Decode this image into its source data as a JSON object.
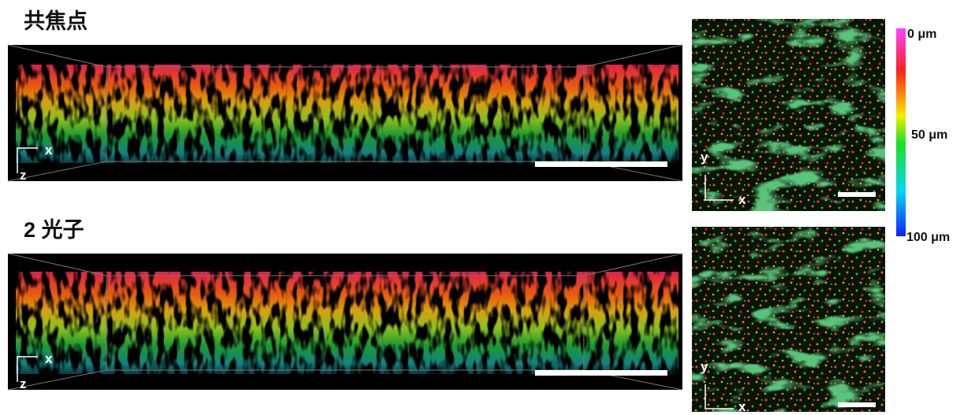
{
  "panels": [
    {
      "title": "共焦点",
      "side_view": {
        "x_label": "x",
        "z_label": "z"
      },
      "top_view": {
        "x_label": "x",
        "y_label": "y"
      }
    },
    {
      "title": "2 光子",
      "side_view": {
        "x_label": "x",
        "z_label": "z"
      },
      "top_view": {
        "x_label": "x",
        "y_label": "y"
      }
    }
  ],
  "colorbar": {
    "labels": [
      "0 μm",
      "50 μm",
      "100 μm"
    ]
  }
}
